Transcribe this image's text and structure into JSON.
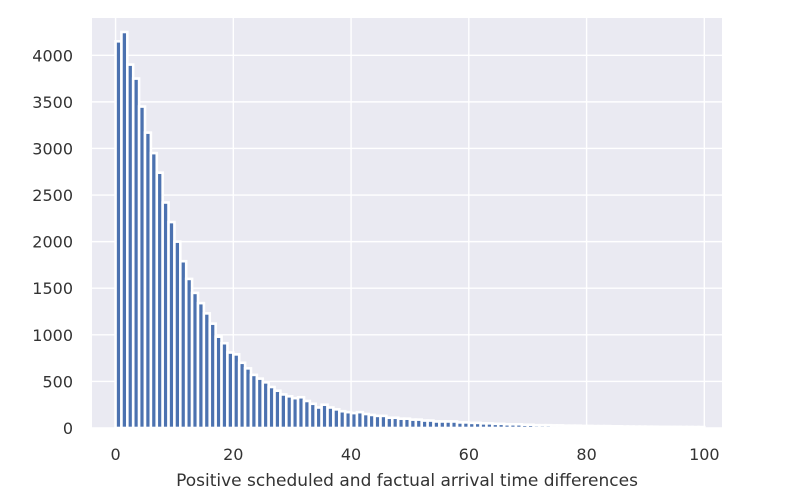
{
  "chart_data": {
    "type": "bar",
    "title": "",
    "xlabel": "Positive scheduled and factual arrival time differences",
    "ylabel": "",
    "xlim": [
      -4,
      103
    ],
    "ylim": [
      0,
      4400
    ],
    "grid": true,
    "x_ticks": [
      0,
      20,
      40,
      60,
      80,
      100
    ],
    "y_ticks": [
      0,
      500,
      1000,
      1500,
      2000,
      2500,
      3000,
      3500,
      4000
    ],
    "bar_color": "#4c72b0",
    "edge_color": "#ffffff",
    "background_color": "#eaeaf2",
    "x": [
      0,
      1,
      2,
      3,
      4,
      5,
      6,
      7,
      8,
      9,
      10,
      11,
      12,
      13,
      14,
      15,
      16,
      17,
      18,
      19,
      20,
      21,
      22,
      23,
      24,
      25,
      26,
      27,
      28,
      29,
      30,
      31,
      32,
      33,
      34,
      35,
      36,
      37,
      38,
      39,
      40,
      41,
      42,
      43,
      44,
      45,
      46,
      47,
      48,
      49,
      50,
      51,
      52,
      53,
      54,
      55,
      56,
      57,
      58,
      59,
      60,
      61,
      62,
      63,
      64,
      65,
      66,
      67,
      68,
      69,
      70,
      71,
      72,
      73,
      74,
      75,
      76,
      77,
      78,
      79,
      80,
      81,
      82,
      83,
      84,
      85,
      86,
      87,
      88,
      89,
      90,
      91,
      92,
      93,
      94,
      95,
      96,
      97,
      98,
      99
    ],
    "values": [
      4150,
      4250,
      3900,
      3750,
      3450,
      3170,
      2950,
      2740,
      2420,
      2210,
      2000,
      1790,
      1600,
      1450,
      1340,
      1230,
      1120,
      980,
      910,
      810,
      790,
      700,
      640,
      570,
      530,
      490,
      440,
      400,
      360,
      340,
      320,
      330,
      290,
      260,
      220,
      250,
      220,
      200,
      180,
      170,
      160,
      170,
      150,
      140,
      130,
      130,
      110,
      110,
      100,
      100,
      90,
      90,
      80,
      80,
      70,
      70,
      70,
      70,
      60,
      60,
      55,
      55,
      50,
      50,
      45,
      45,
      40,
      40,
      40,
      35,
      35,
      30,
      30,
      30,
      28,
      28,
      25,
      25,
      25,
      22,
      22,
      20,
      20,
      20,
      18,
      18,
      16,
      16,
      15,
      15,
      14,
      14,
      13,
      13,
      12,
      12,
      11,
      11,
      10,
      10
    ]
  }
}
